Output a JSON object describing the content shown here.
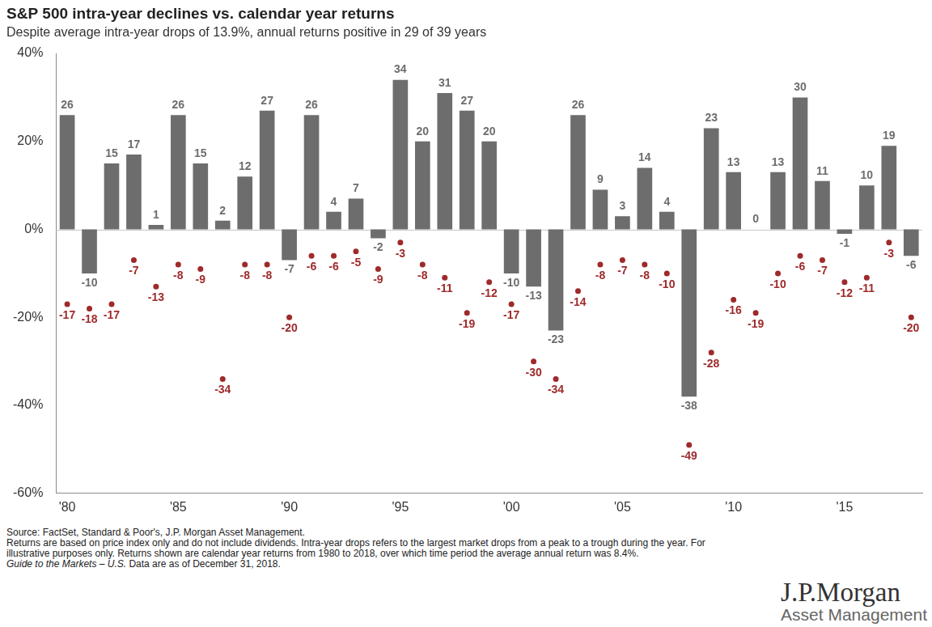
{
  "chart_data": {
    "type": "bar",
    "title": "S&P 500 intra-year declines vs. calendar year returns",
    "subtitle": "Despite average intra-year drops of 13.9%, annual returns positive in 29 of 39 years",
    "categories": [
      "'80",
      null,
      null,
      null,
      null,
      "'85",
      null,
      null,
      null,
      null,
      "'90",
      null,
      null,
      null,
      null,
      "'95",
      null,
      null,
      null,
      null,
      "'00",
      null,
      null,
      null,
      null,
      "'05",
      null,
      null,
      null,
      null,
      "'10",
      null,
      null,
      null,
      null,
      "'15",
      null,
      null,
      null
    ],
    "series": [
      {
        "type": "bar",
        "color": "#6d6d6d",
        "values": [
          26,
          -10,
          15,
          17,
          1,
          26,
          15,
          2,
          12,
          27,
          -7,
          26,
          4,
          7,
          -2,
          34,
          20,
          31,
          27,
          20,
          -10,
          -13,
          -23,
          26,
          9,
          3,
          14,
          4,
          -38,
          23,
          13,
          0,
          13,
          30,
          11,
          -1,
          10,
          19,
          -6
        ]
      },
      {
        "type": "scatter",
        "marker": "circle",
        "color": "#9e2a2b",
        "values": [
          -17,
          -18,
          -17,
          -7,
          -13,
          -8,
          -9,
          -34,
          -8,
          -8,
          -20,
          -6,
          -6,
          -5,
          -9,
          -3,
          -8,
          -11,
          -19,
          -12,
          -17,
          -30,
          -34,
          -14,
          -8,
          -7,
          -8,
          -10,
          -49,
          -28,
          -16,
          -19,
          -10,
          -6,
          -7,
          -12,
          -11,
          -3,
          -20
        ]
      }
    ],
    "ylim": [
      -60,
      40
    ],
    "yticks": [
      {
        "value": -60,
        "label": "-60%"
      },
      {
        "value": -40,
        "label": "-40%"
      },
      {
        "value": -20,
        "label": "-20%"
      },
      {
        "value": 0,
        "label": "0%"
      },
      {
        "value": 20,
        "label": "20%"
      },
      {
        "value": 40,
        "label": "40%"
      }
    ],
    "grid": false,
    "data_labels": true
  },
  "footnotes": {
    "source": "Source: FactSet, Standard & Poor's, J.P. Morgan Asset Management.",
    "note": "Returns are based on price index only and do not include dividends. Intra-year drops refers to the largest market drops from a peak to a trough during the year. For illustrative purposes only. Returns shown are calendar year returns from 1980 to 2018, over which time period the average annual return was 8.4%.",
    "guide": "Guide to the Markets – U.S.",
    "date": "Data are as of December 31, 2018."
  },
  "logo": {
    "name": "J.P.Morgan",
    "tagline": "Asset Management"
  }
}
